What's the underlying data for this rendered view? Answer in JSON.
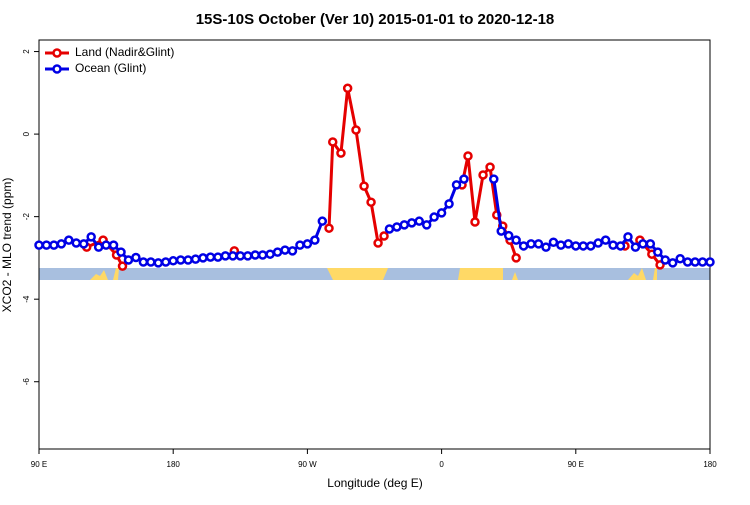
{
  "chart_data": {
    "type": "line",
    "title": "15S-10S October (Ver 10)   2015-01-01 to 2020-12-18",
    "xlabel": "Longitude (deg E)",
    "ylabel": "XCO2 - MLO trend (ppm)",
    "xlim": [
      90,
      540
    ],
    "ylim": [
      -7.63,
      2.28
    ],
    "xticks": [
      {
        "value": 90,
        "label": "90 E"
      },
      180,
      {
        "value": 270,
        "label": "90 W"
      },
      {
        "value": 360,
        "label": "0"
      },
      {
        "value": 450,
        "label": "90 E"
      },
      {
        "value": 540,
        "label": "180"
      }
    ],
    "yticks": [
      2,
      0,
      -2,
      -4,
      -6
    ],
    "legend": "top-left",
    "series": [
      {
        "name": "Land (Nadir&Glint)",
        "color": "#e50000",
        "x": [
          122,
          133,
          142,
          146,
          180,
          221,
          250,
          284.5,
          287,
          292.5,
          297,
          302.6,
          308,
          312.7,
          317.4,
          321.4,
          350,
          373.7,
          377.7,
          382.4,
          387.8,
          392.5,
          397,
          401,
          405.9,
          410,
          450,
          483,
          488,
          493,
          501,
          506.5
        ],
        "values": [
          -2.74,
          -2.57,
          -2.93,
          -3.2,
          null,
          -2.83,
          null,
          -2.28,
          -0.19,
          -0.46,
          1.11,
          0.1,
          -1.26,
          -1.65,
          -2.64,
          -2.47,
          null,
          -1.23,
          -0.53,
          -2.13,
          -0.99,
          -0.8,
          -1.96,
          -2.23,
          -2.57,
          -3.0,
          null,
          -2.71,
          null,
          -2.57,
          -2.91,
          -3.17
        ]
      },
      {
        "name": "Ocean (Glint)",
        "color": "#0000e5",
        "x": [
          90,
          95,
          100,
          105,
          110,
          115,
          120,
          125,
          130,
          135,
          140,
          145,
          150,
          155,
          160,
          165,
          170,
          175,
          180,
          185,
          190,
          195,
          200,
          205,
          210,
          215,
          220,
          225,
          230,
          235,
          240,
          245,
          250,
          255,
          260,
          265,
          270,
          275,
          280,
          285,
          290,
          295,
          300,
          305,
          310,
          315,
          320,
          325,
          330,
          335,
          340,
          345,
          350,
          355,
          360,
          365,
          370,
          375,
          380,
          385,
          390,
          395,
          400,
          405,
          410,
          415,
          420,
          425,
          430,
          435,
          440,
          445,
          450,
          455,
          460,
          465,
          470,
          475,
          480,
          485,
          490,
          495,
          500,
          505,
          510,
          515,
          520,
          525,
          530,
          535,
          540
        ],
        "values": [
          -2.69,
          -2.69,
          -2.69,
          -2.66,
          -2.57,
          -2.64,
          -2.66,
          -2.49,
          -2.74,
          -2.69,
          -2.69,
          -2.86,
          -3.05,
          -2.99,
          -3.1,
          -3.1,
          -3.12,
          -3.1,
          -3.07,
          -3.05,
          -3.05,
          -3.03,
          -3.0,
          -2.98,
          -2.98,
          -2.95,
          -2.95,
          -2.95,
          -2.95,
          -2.93,
          -2.93,
          -2.91,
          -2.86,
          -2.81,
          -2.83,
          -2.69,
          -2.66,
          -2.57,
          -2.11,
          null,
          null,
          null,
          null,
          null,
          null,
          null,
          null,
          -2.3,
          -2.25,
          -2.2,
          -2.15,
          -2.11,
          -2.2,
          -2.01,
          -1.91,
          -1.69,
          -1.23,
          -1.09,
          null,
          null,
          null,
          -1.09,
          -2.35,
          -2.46,
          -2.57,
          -2.71,
          -2.66,
          -2.66,
          -2.74,
          -2.62,
          -2.69,
          -2.66,
          -2.71,
          -2.71,
          -2.71,
          -2.64,
          -2.57,
          -2.69,
          -2.71,
          -2.49,
          -2.74,
          -2.66,
          -2.66,
          -2.86,
          -3.05,
          -3.12,
          -3.02,
          -3.1,
          -3.1,
          -3.1,
          -3.1
        ]
      }
    ]
  }
}
